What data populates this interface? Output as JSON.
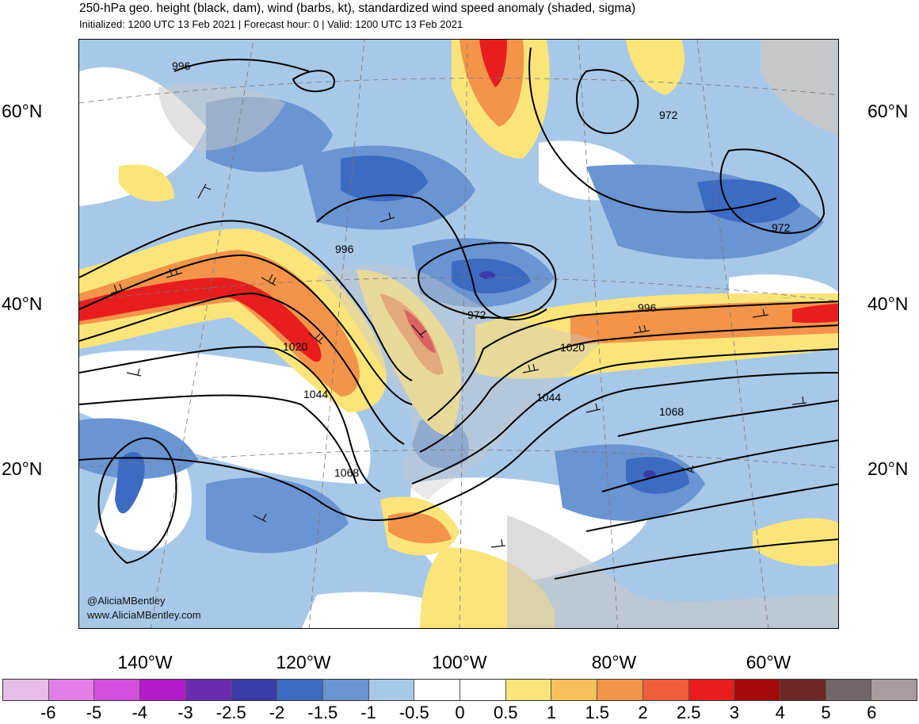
{
  "title": "250-hPa geo. height (black, dam), wind (barbs, kt), standardized wind speed anomaly (shaded, sigma)",
  "subtitle": "Initialized: 1200 UTC 13 Feb 2021 | Forecast hour: 0 | Valid: 1200 UTC 13 Feb 2021",
  "credit": {
    "handle": "@AliciaMBentley",
    "site": "www.AliciaMBentley.com"
  },
  "lat_labels": [
    "60°N",
    "40°N",
    "20°N"
  ],
  "lon_labels": [
    "140°W",
    "120°W",
    "100°W",
    "80°W",
    "60°W"
  ],
  "contour_labels": [
    "996",
    "996",
    "972",
    "972",
    "972",
    "996",
    "1020",
    "1020",
    "1044",
    "1044",
    "1068",
    "1068"
  ],
  "colorbar": {
    "colors": [
      "#e6bde6",
      "#e27fe6",
      "#d44ee0",
      "#b41bc8",
      "#6a2bb0",
      "#3a3aa8",
      "#3d6bc2",
      "#6a94d2",
      "#a8c8e8",
      "#ffffff",
      "#ffffff",
      "#fbe57a",
      "#f6c15a",
      "#f3944a",
      "#ef5e3a",
      "#e81e1e",
      "#a50a0a",
      "#6e2727",
      "#726666",
      "#a89c9c"
    ],
    "ticks": [
      "-6",
      "-5",
      "-4",
      "-3",
      "-2.5",
      "-2",
      "-1.5",
      "-1",
      "-0.5",
      "0",
      "0.5",
      "1",
      "1.5",
      "2",
      "2.5",
      "3",
      "4",
      "5",
      "6"
    ]
  },
  "palette": {
    "land": "#c8c8c8",
    "ocean": "#ffffff",
    "contour": "#000000",
    "coast": "#555555"
  }
}
